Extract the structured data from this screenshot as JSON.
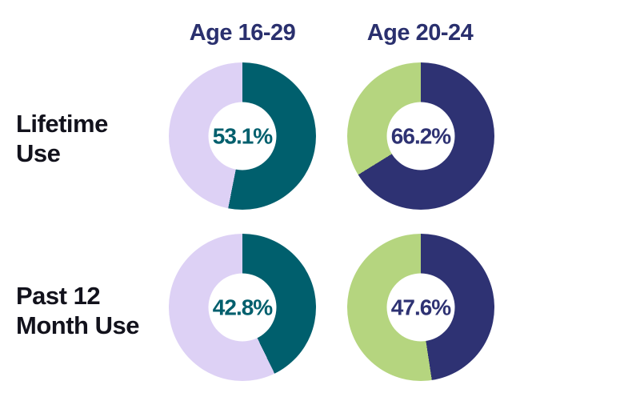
{
  "title": "Donut chart grid of substance use prevalence by age group",
  "colors": {
    "header_text": "#2A306E",
    "row_label_text": "#12121C",
    "teal": "#005F6D",
    "lavender": "#DDD1F5",
    "navy": "#2E3273",
    "green": "#B5D57F",
    "background": "#FFFFFF"
  },
  "chart_data": {
    "type": "pie",
    "style": "donut-grid",
    "grid": {
      "rows": 2,
      "columns": 2
    },
    "columns": [
      "Age 16-29",
      "Age 20-24"
    ],
    "rows": [
      "Lifetime Use",
      "Past 12 Month Use"
    ],
    "donuts": [
      {
        "row": "Lifetime Use",
        "column": "Age 16-29",
        "value_pct": 53.1,
        "remainder_pct": 46.9,
        "label": "53.1%",
        "fill_color": "#005F6D",
        "remainder_color": "#DDD1F5",
        "label_color": "#005F6D",
        "start_angle_deg": 0,
        "direction": "clockwise"
      },
      {
        "row": "Lifetime Use",
        "column": "Age 20-24",
        "value_pct": 66.2,
        "remainder_pct": 33.8,
        "label": "66.2%",
        "fill_color": "#2E3273",
        "remainder_color": "#B5D57F",
        "label_color": "#2E3273",
        "start_angle_deg": 0,
        "direction": "clockwise"
      },
      {
        "row": "Past 12 Month Use",
        "column": "Age 16-29",
        "value_pct": 42.8,
        "remainder_pct": 57.2,
        "label": "42.8%",
        "fill_color": "#005F6D",
        "remainder_color": "#DDD1F5",
        "label_color": "#005F6D",
        "start_angle_deg": 0,
        "direction": "clockwise"
      },
      {
        "row": "Past 12 Month Use",
        "column": "Age 20-24",
        "value_pct": 47.6,
        "remainder_pct": 52.4,
        "label": "47.6%",
        "fill_color": "#2E3273",
        "remainder_color": "#B5D57F",
        "label_color": "#2E3273",
        "start_angle_deg": 0,
        "direction": "clockwise"
      }
    ],
    "legend": false,
    "grid_lines": false
  }
}
